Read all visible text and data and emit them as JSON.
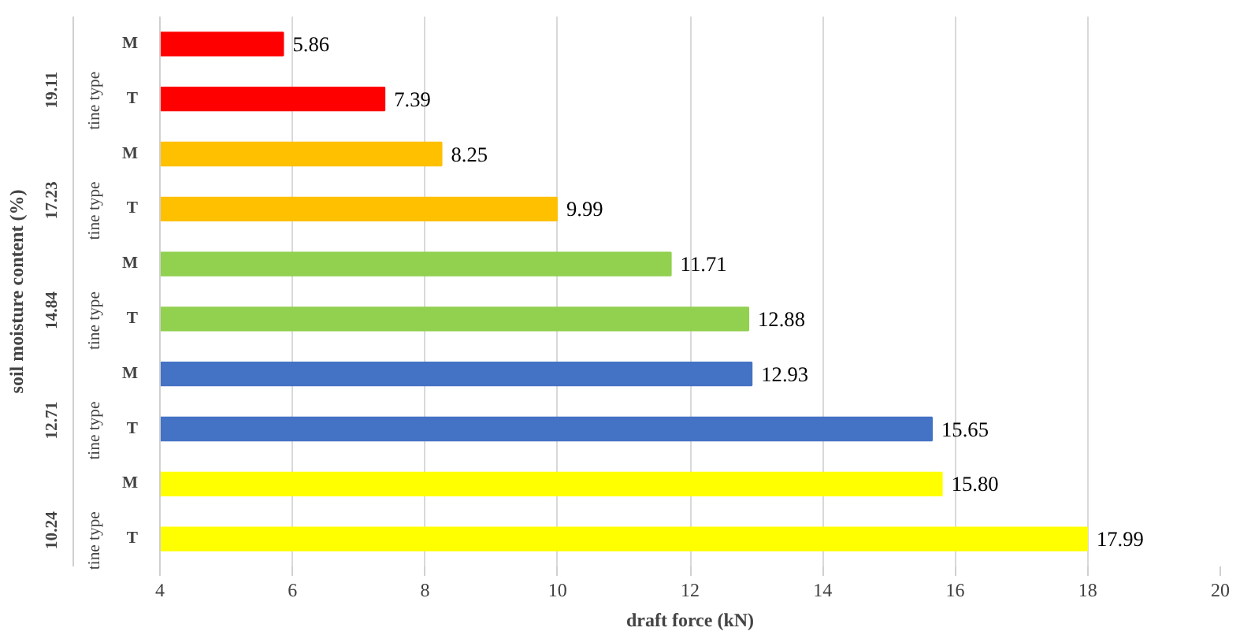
{
  "chart_data": {
    "type": "bar",
    "orientation": "horizontal",
    "xlabel": "draft force (kN)",
    "ylabel": "soil moisture content (%)",
    "categories": [
      "M",
      "T",
      "M",
      "T",
      "M",
      "T",
      "M",
      "T",
      "M",
      "T"
    ],
    "values": [
      5.86,
      7.39,
      8.25,
      9.99,
      11.71,
      12.88,
      12.93,
      15.65,
      15.8,
      17.99
    ],
    "value_labels": [
      "5.86",
      "7.39",
      "8.25",
      "9.99",
      "11.71",
      "12.88",
      "12.93",
      "15.65",
      "15.80",
      "17.99"
    ],
    "colors": [
      "#ff0000",
      "#ff0000",
      "#ffc000",
      "#ffc000",
      "#92d050",
      "#92d050",
      "#4472c4",
      "#4472c4",
      "#ffff00",
      "#ffff00"
    ],
    "annotations": [
      "19.11",
      "tine type",
      "17.23",
      "tine type",
      "14.84",
      "tine type",
      "12.71",
      "tine type",
      "10.24",
      "tine type"
    ],
    "xlim": [
      4,
      20
    ],
    "xticks": [
      4,
      6,
      8,
      10,
      12,
      14,
      16,
      18,
      20
    ],
    "grid": "x"
  }
}
